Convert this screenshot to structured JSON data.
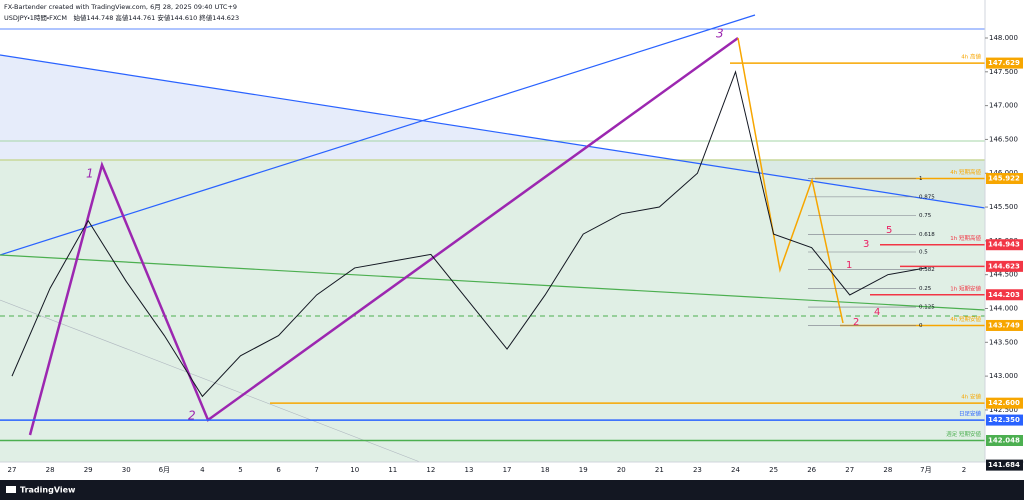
{
  "chart_data": {
    "type": "line",
    "title": "FX-Bartender created with TradingView.com, 6月 28, 2025 09:40 UTC+9",
    "subtitle": "USDJPY・1時間・FXCM　始値144.748 高値144.761 安値144.610 終値144.623",
    "brand": "TradingView",
    "categories": [
      "27",
      "28",
      "29",
      "30",
      "6月",
      "4",
      "5",
      "6",
      "7",
      "10",
      "11",
      "12",
      "13",
      "17",
      "18",
      "19",
      "20",
      "21",
      "23",
      "24",
      "25",
      "26",
      "27",
      "28",
      "7月",
      "2"
    ],
    "series": [
      {
        "name": "USDJPY",
        "color": "#131722",
        "values": [
          143.0,
          144.3,
          145.3,
          144.4,
          143.6,
          142.7,
          143.3,
          143.6,
          144.2,
          144.6,
          144.7,
          144.8,
          144.1,
          143.4,
          144.2,
          145.1,
          145.4,
          145.5,
          146.0,
          147.5,
          145.1,
          144.9,
          144.2,
          144.5,
          144.6,
          null
        ]
      }
    ],
    "ylim": [
      141.73,
      148.34
    ],
    "yticks": [
      {
        "value": 142.5,
        "label": "142.500"
      },
      {
        "value": 143,
        "label": "143.000"
      },
      {
        "value": 143.5,
        "label": "143.500"
      },
      {
        "value": 144,
        "label": "144.000"
      },
      {
        "value": 144.5,
        "label": "144.500"
      },
      {
        "value": 145,
        "label": "145.000"
      },
      {
        "value": 145.5,
        "label": "145.500"
      },
      {
        "value": 146,
        "label": "146.000"
      },
      {
        "value": 146.5,
        "label": "146.500"
      },
      {
        "value": 147,
        "label": "147.000"
      },
      {
        "value": 147.5,
        "label": "147.500"
      },
      {
        "value": 148,
        "label": "148.000"
      }
    ],
    "price_labels": [
      {
        "value": 147.629,
        "color": "#f7a600",
        "note": "4h 高値"
      },
      {
        "value": 145.922,
        "color": "#f7a600",
        "note": "4h 短期高値"
      },
      {
        "value": 144.943,
        "color": "#f23645",
        "note": "1h 短期高値"
      },
      {
        "value": 144.623,
        "color": "#f23645"
      },
      {
        "value": 144.203,
        "color": "#f23645",
        "note": "1h 短期安値"
      },
      {
        "value": 143.749,
        "color": "#f7a600",
        "note": "4h 短期安値"
      },
      {
        "value": 142.6,
        "label": "142.600",
        "color": "#f7a600",
        "note": "4h 安値"
      },
      {
        "value": 142.35,
        "label": "142.350",
        "color": "#2962ff",
        "note": "日足安値"
      },
      {
        "value": 142.048,
        "color": "#4caf50",
        "note": "週足 短期安値"
      },
      {
        "value": 141.684,
        "color": "#131722"
      }
    ],
    "fib_levels": [
      1,
      0.875,
      0.75,
      0.618,
      0.5,
      0.382,
      0.25,
      0.125,
      0
    ],
    "wave_labels": [
      "1",
      "2",
      "3",
      "4",
      "5"
    ],
    "major_wave_labels": [
      "1",
      "2",
      "3"
    ]
  }
}
